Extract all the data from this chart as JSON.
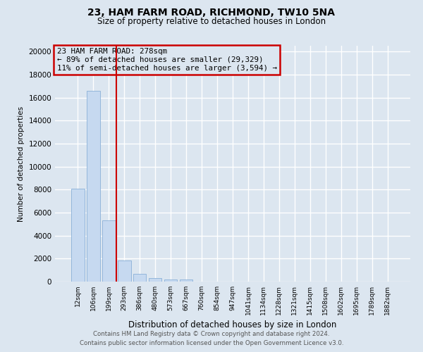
{
  "title1": "23, HAM FARM ROAD, RICHMOND, TW10 5NA",
  "title2": "Size of property relative to detached houses in London",
  "xlabel": "Distribution of detached houses by size in London",
  "ylabel": "Number of detached properties",
  "footnote1": "Contains HM Land Registry data © Crown copyright and database right 2024.",
  "footnote2": "Contains public sector information licensed under the Open Government Licence v3.0.",
  "annotation_line1": "23 HAM FARM ROAD: 278sqm",
  "annotation_line2": "← 89% of detached houses are smaller (29,329)",
  "annotation_line3": "11% of semi-detached houses are larger (3,594) →",
  "bar_color": "#c6d9f0",
  "bar_edge_color": "#8ab0d8",
  "vline_color": "#cc0000",
  "annotation_border_color": "#cc0000",
  "background_color": "#dce6f0",
  "grid_color": "#ffffff",
  "categories": [
    "12sqm",
    "106sqm",
    "199sqm",
    "293sqm",
    "386sqm",
    "480sqm",
    "573sqm",
    "667sqm",
    "760sqm",
    "854sqm",
    "947sqm",
    "1041sqm",
    "1134sqm",
    "1228sqm",
    "1321sqm",
    "1415sqm",
    "1508sqm",
    "1602sqm",
    "1695sqm",
    "1789sqm",
    "1882sqm"
  ],
  "values": [
    8100,
    16600,
    5300,
    1850,
    700,
    300,
    200,
    170,
    0,
    0,
    0,
    0,
    0,
    0,
    0,
    0,
    0,
    0,
    0,
    0,
    0
  ],
  "ylim": [
    0,
    20500
  ],
  "yticks": [
    0,
    2000,
    4000,
    6000,
    8000,
    10000,
    12000,
    14000,
    16000,
    18000,
    20000
  ],
  "vline_x_idx": 2.5,
  "figsize": [
    6.0,
    5.0
  ],
  "dpi": 100
}
